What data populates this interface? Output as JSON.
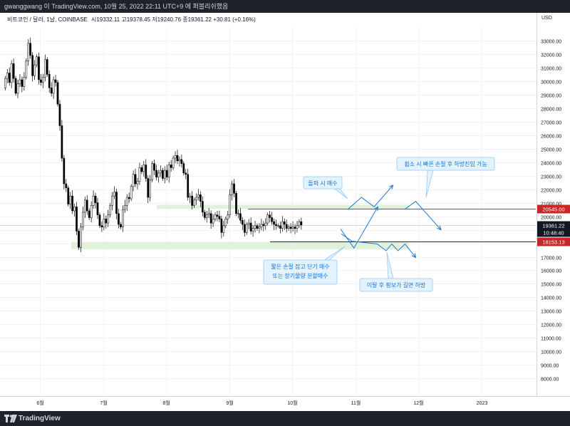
{
  "header": {
    "attribution": "gwanggwang 이 TradingView.com, 10월 25, 2022 22:11 UTC+9 에 퍼블리쉬했음"
  },
  "legend": {
    "symbol": "비트코인 / 달러, 1날, COINBASE",
    "ohlc": "시19332.11  고19378.45  저19240.76  종19361.22  +30.81 (+0.16%)"
  },
  "footer": {
    "brand": "TradingView"
  },
  "colors": {
    "up": "#26a69a",
    "down": "#ef5350",
    "candle": "#000000",
    "zone": "#e1f2dc",
    "resistance_line": "#d32f2f",
    "support_line": "#7a0000",
    "annotation": "#1976d2",
    "price_tag_dark": "#131722",
    "price_tag_red": "#c62828",
    "background_frame": "#1e222d"
  },
  "chart_data": {
    "type": "candlestick",
    "currency_label": "USD",
    "ylim": [
      6800,
      34000
    ],
    "y_ticks": [
      8000,
      9000,
      10000,
      11000,
      12000,
      13000,
      14000,
      15000,
      16000,
      17000,
      18000,
      19000,
      20000,
      21000,
      22000,
      23000,
      24000,
      25000,
      26000,
      27000,
      28000,
      29000,
      30000,
      31000,
      32000,
      33000
    ],
    "y_tick_labels": [
      "8000.00",
      "9000.00",
      "10000.00",
      "11000.00",
      "12000.00",
      "13000.00",
      "14000.00",
      "15000.00",
      "16000.00",
      "17000.00",
      "18000.00",
      "19000.00",
      "20000.00",
      "21000.00",
      "22000.00",
      "23000.00",
      "24000.00",
      "25000.00",
      "26000.00",
      "27000.00",
      "28000.00",
      "29000.00",
      "30000.00",
      "31000.00",
      "32000.00",
      "33000.00"
    ],
    "x_ticks": [
      {
        "label": "6월",
        "month": 0
      },
      {
        "label": "7월",
        "month": 1
      },
      {
        "label": "8월",
        "month": 2
      },
      {
        "label": "9월",
        "month": 3
      },
      {
        "label": "10월",
        "month": 4
      },
      {
        "label": "11월",
        "month": 5
      },
      {
        "label": "12월",
        "month": 6
      },
      {
        "label": "2023",
        "month": 7
      }
    ],
    "month_start_index": -0.5,
    "price_series": [
      [
        29500,
        30200
      ],
      [
        30200,
        30600
      ],
      [
        30600,
        29900
      ],
      [
        29900,
        31300
      ],
      [
        31300,
        30200
      ],
      [
        30200,
        29100
      ],
      [
        29100,
        29800
      ],
      [
        29800,
        30100
      ],
      [
        30100,
        29600
      ],
      [
        29600,
        30300
      ],
      [
        30300,
        31500
      ],
      [
        31500,
        32800
      ],
      [
        32800,
        31900
      ],
      [
        31900,
        30400
      ],
      [
        30400,
        31200
      ],
      [
        31200,
        31800
      ],
      [
        31800,
        30100
      ],
      [
        30100,
        29900
      ],
      [
        29900,
        30300
      ],
      [
        30300,
        31600
      ],
      [
        31600,
        30500
      ],
      [
        30500,
        29500
      ],
      [
        29500,
        29100
      ],
      [
        29100,
        30100
      ],
      [
        30100,
        29900
      ],
      [
        29900,
        28300
      ],
      [
        28300,
        26700
      ],
      [
        26700,
        24300
      ],
      [
        24300,
        22400
      ],
      [
        22400,
        22100
      ],
      [
        22100,
        20900
      ],
      [
        20900,
        21500
      ],
      [
        21500,
        20400
      ],
      [
        20400,
        20700
      ],
      [
        20700,
        18900
      ],
      [
        18900,
        17700
      ],
      [
        17700,
        19200
      ],
      [
        19200,
        20300
      ],
      [
        20300,
        21200
      ],
      [
        21200,
        20400
      ],
      [
        20400,
        19900
      ],
      [
        19900,
        20800
      ],
      [
        20800,
        21500
      ],
      [
        21500,
        21000
      ],
      [
        21000,
        20100
      ],
      [
        20100,
        19300
      ],
      [
        19300,
        19200
      ],
      [
        19200,
        19800
      ],
      [
        19800,
        19500
      ],
      [
        19500,
        20100
      ],
      [
        20100,
        20800
      ],
      [
        20800,
        21500
      ],
      [
        21500,
        21800
      ],
      [
        21800,
        20200
      ],
      [
        20200,
        19400
      ],
      [
        19400,
        19200
      ],
      [
        19200,
        20500
      ],
      [
        20500,
        20800
      ],
      [
        20800,
        21400
      ],
      [
        21400,
        21300
      ],
      [
        21300,
        22200
      ],
      [
        22200,
        23100
      ],
      [
        23100,
        22400
      ],
      [
        22400,
        22600
      ],
      [
        22600,
        23600
      ],
      [
        23600,
        23300
      ],
      [
        23300,
        23800
      ],
      [
        23800,
        22800
      ],
      [
        22800,
        21400
      ],
      [
        21400,
        22700
      ],
      [
        22700,
        23900
      ],
      [
        23900,
        23400
      ],
      [
        23400,
        22900
      ],
      [
        22900,
        23200
      ],
      [
        23200,
        23400
      ],
      [
        23400,
        22800
      ],
      [
        22800,
        23400
      ],
      [
        23400,
        22900
      ],
      [
        22900,
        23800
      ],
      [
        23800,
        23600
      ],
      [
        23600,
        24300
      ],
      [
        24300,
        24500
      ],
      [
        24500,
        24100
      ],
      [
        24100,
        24200
      ],
      [
        24200,
        23900
      ],
      [
        23900,
        23200
      ],
      [
        23200,
        23100
      ],
      [
        23100,
        21400
      ],
      [
        21400,
        21500
      ],
      [
        21500,
        20800
      ],
      [
        20800,
        21200
      ],
      [
        21200,
        21400
      ],
      [
        21400,
        21600
      ],
      [
        21600,
        21100
      ],
      [
        21100,
        20300
      ],
      [
        20300,
        19900
      ],
      [
        19900,
        20100
      ],
      [
        20100,
        20200
      ],
      [
        20200,
        19500
      ],
      [
        19500,
        19800
      ],
      [
        19800,
        20100
      ],
      [
        20100,
        20000
      ],
      [
        20000,
        19800
      ],
      [
        19800,
        18800
      ],
      [
        18800,
        19300
      ],
      [
        19300,
        19800
      ],
      [
        19800,
        20100
      ],
      [
        20100,
        21600
      ],
      [
        21600,
        22400
      ],
      [
        22400,
        21700
      ],
      [
        21700,
        20200
      ],
      [
        20200,
        20200
      ],
      [
        20200,
        19700
      ],
      [
        19700,
        19400
      ],
      [
        19400,
        18800
      ],
      [
        18800,
        19400
      ],
      [
        19400,
        19500
      ],
      [
        19500,
        18900
      ],
      [
        18900,
        19100
      ],
      [
        19100,
        19300
      ],
      [
        19300,
        19100
      ],
      [
        19100,
        19200
      ],
      [
        19200,
        19400
      ],
      [
        19400,
        19300
      ],
      [
        19300,
        19500
      ],
      [
        19500,
        20100
      ],
      [
        20100,
        19900
      ],
      [
        19900,
        19600
      ],
      [
        19600,
        19400
      ],
      [
        19400,
        19300
      ],
      [
        19300,
        19300
      ],
      [
        19300,
        19100
      ],
      [
        19100,
        19600
      ],
      [
        19600,
        19400
      ],
      [
        19400,
        19100
      ],
      [
        19100,
        19200
      ],
      [
        19200,
        19100
      ],
      [
        19100,
        19200
      ],
      [
        19200,
        19100
      ],
      [
        19100,
        19300
      ],
      [
        19300,
        19600
      ],
      [
        19600,
        19361
      ]
    ],
    "first_candle_month": -0.55,
    "candle_step_months": 0.0333,
    "last_price": 19361.22,
    "last_price_label": "19361.22",
    "countdown_label": "10:48:40",
    "resistance_level": 20545.0,
    "resistance_label": "20545.00",
    "support_level": 18153.13,
    "support_label": "18153.13",
    "zones": [
      {
        "name": "upper-zone",
        "from": 20550,
        "to": 20850,
        "start_month": 1.85,
        "end_month": 5.85
      },
      {
        "name": "lower-zone",
        "from": 17550,
        "to": 18100,
        "start_month": 0.5,
        "end_month": 5.85
      }
    ]
  },
  "annotations": {
    "buy_breakout": "돌파 시 매수",
    "fakeout": "휩소 시 빠른 손절 후 하방진입 가능",
    "short_stop_line1": "짧은 손절 잡고 단기 매수",
    "short_stop_line2": "또는 장기물량 분할매수",
    "breakdown": "이탈 후 횡보가 길면 하방"
  }
}
